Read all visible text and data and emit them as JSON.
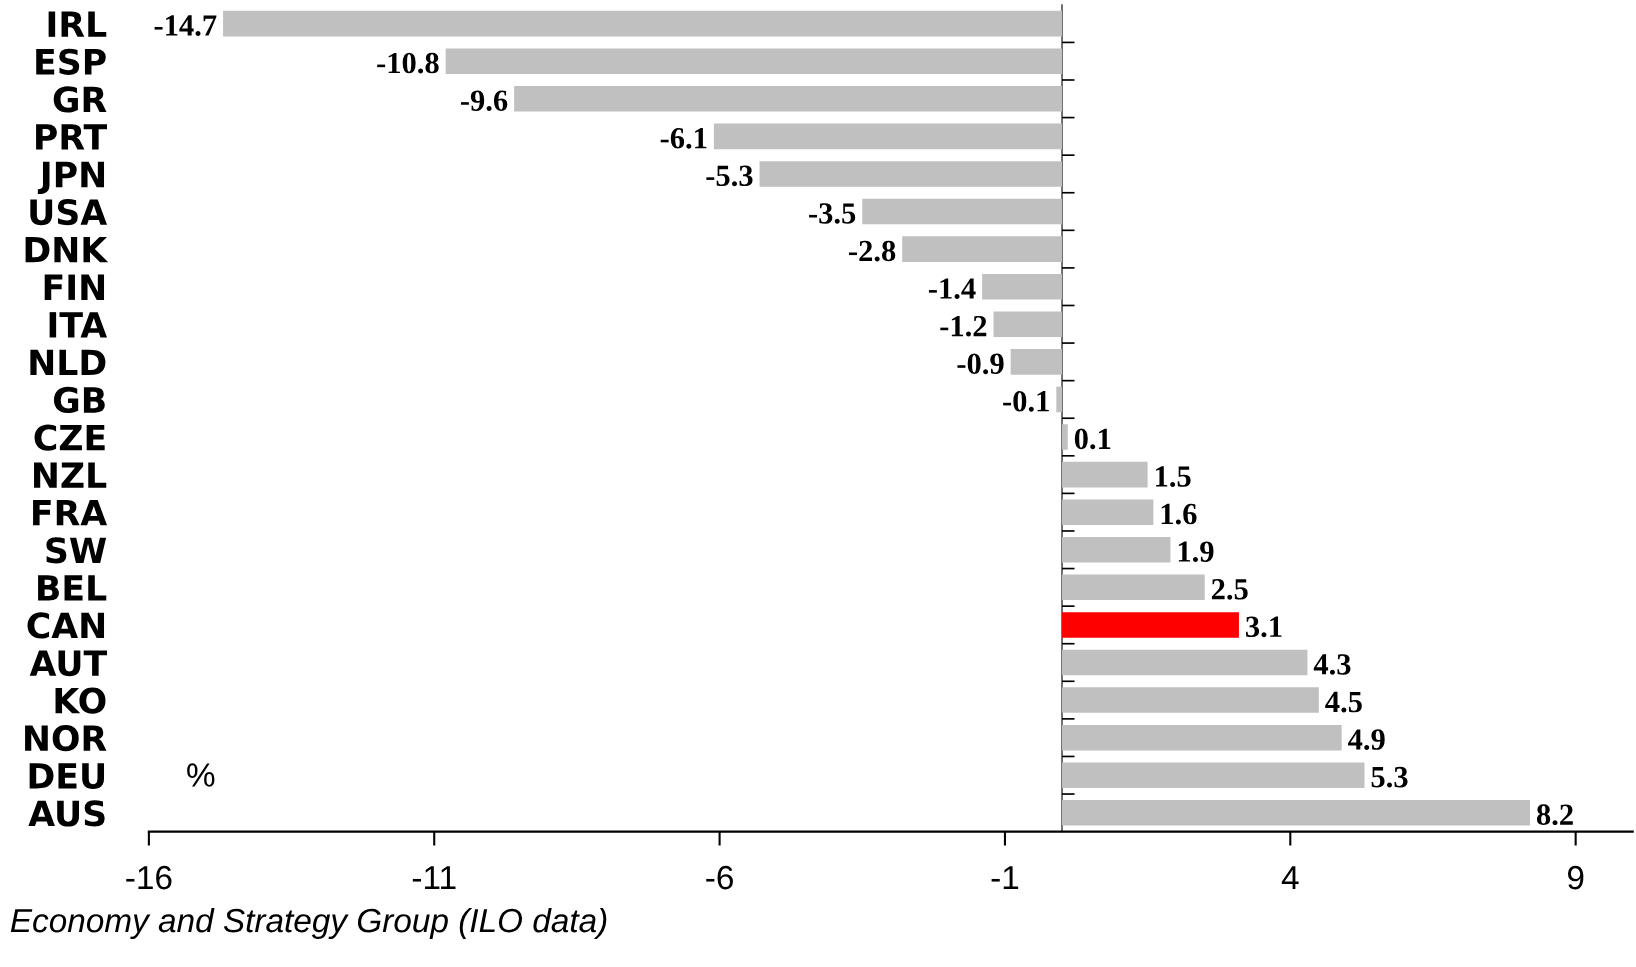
{
  "chart_data": {
    "type": "bar",
    "orientation": "horizontal",
    "categories": [
      "IRL",
      "ESP",
      "GR",
      "PRT",
      "JPN",
      "USA",
      "DNK",
      "FIN",
      "ITA",
      "NLD",
      "GB",
      "CZE",
      "NZL",
      "FRA",
      "SW",
      "BEL",
      "CAN",
      "AUT",
      "KO",
      "NOR",
      "DEU",
      "AUS"
    ],
    "values": [
      -14.7,
      -10.8,
      -9.6,
      -6.1,
      -5.3,
      -3.5,
      -2.8,
      -1.4,
      -1.2,
      -0.9,
      -0.1,
      0.1,
      1.5,
      1.6,
      1.9,
      2.5,
      3.1,
      4.3,
      4.5,
      4.9,
      5.3,
      8.2
    ],
    "colors": [
      "#c0c0c0",
      "#c0c0c0",
      "#c0c0c0",
      "#c0c0c0",
      "#c0c0c0",
      "#c0c0c0",
      "#c0c0c0",
      "#c0c0c0",
      "#c0c0c0",
      "#c0c0c0",
      "#c0c0c0",
      "#c0c0c0",
      "#c0c0c0",
      "#c0c0c0",
      "#c0c0c0",
      "#c0c0c0",
      "#ff0000",
      "#c0c0c0",
      "#c0c0c0",
      "#c0c0c0",
      "#c0c0c0",
      "#c0c0c0"
    ],
    "data_labels": true,
    "xlim": [
      -16,
      10
    ],
    "xticks": [
      -16,
      -11,
      -6,
      -1,
      4,
      9
    ],
    "grid": false,
    "legend": false,
    "annotations": [
      "%",
      "Economy and Strategy Group (ILO data)"
    ]
  }
}
